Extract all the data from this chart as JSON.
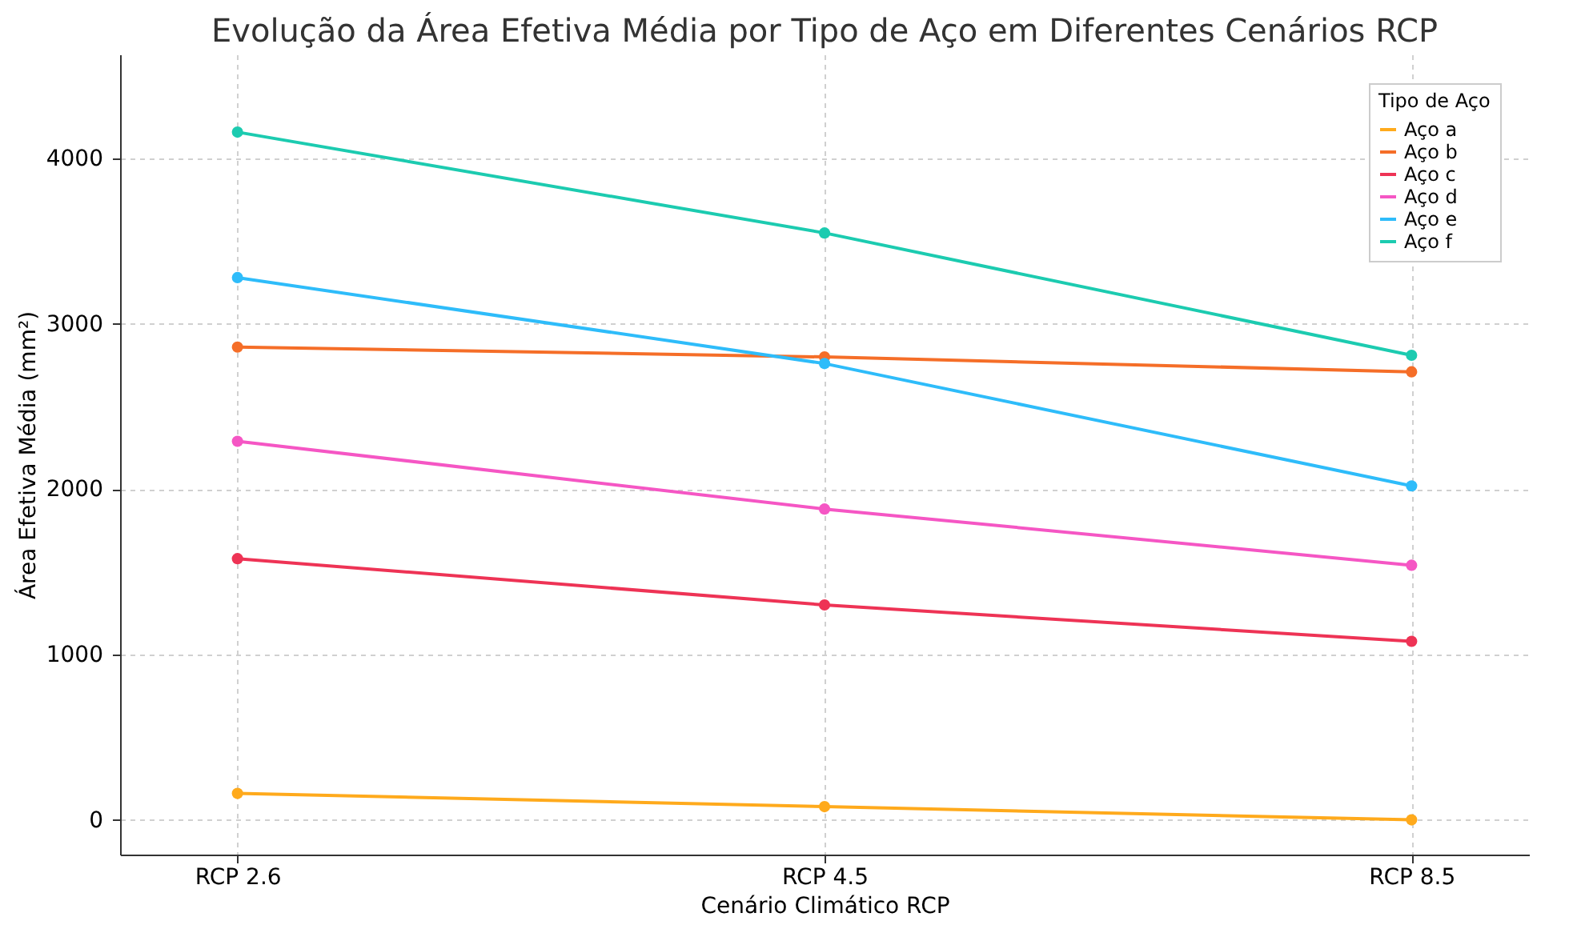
{
  "chart_data": {
    "type": "line",
    "title": "Evolução da Área Efetiva Média por Tipo de Aço em Diferentes Cenários RCP",
    "xlabel": "Cenário Climático RCP",
    "ylabel": "Área Efetiva Média (mm²)",
    "legend_title": "Tipo de Aço",
    "categories": [
      "RCP 2.6",
      "RCP 4.5",
      "RCP 8.5"
    ],
    "series": [
      {
        "name": "Aço a",
        "color": "#ffaa1c",
        "values": [
          160,
          80,
          0
        ]
      },
      {
        "name": "Aço b",
        "color": "#f56e28",
        "values": [
          2860,
          2800,
          2710
        ]
      },
      {
        "name": "Aço c",
        "color": "#ee3355",
        "values": [
          1580,
          1300,
          1080
        ]
      },
      {
        "name": "Aço d",
        "color": "#f556c4",
        "values": [
          2290,
          1880,
          1540
        ]
      },
      {
        "name": "Aço e",
        "color": "#2ebcfa",
        "values": [
          3280,
          2760,
          2020
        ]
      },
      {
        "name": "Aço f",
        "color": "#1ccbb0",
        "values": [
          4160,
          3550,
          2810
        ]
      }
    ],
    "ylim": [
      -210,
      4630
    ],
    "yticks": [
      0,
      1000,
      2000,
      3000,
      4000
    ],
    "grid": true,
    "legend": "top right",
    "marker": "circle",
    "line_style": "solid"
  }
}
